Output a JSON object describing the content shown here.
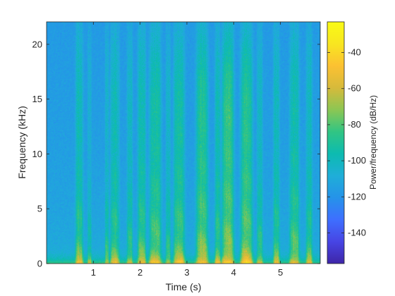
{
  "chart_data": {
    "type": "heatmap",
    "title": "",
    "xlabel": "Time (s)",
    "ylabel": "Frequency (kHz)",
    "colorbar_label": "Power/frequency (dB/Hz)",
    "xlim": [
      0,
      5.85
    ],
    "ylim": [
      0,
      22.05
    ],
    "x_ticks": [
      1,
      2,
      3,
      4,
      5
    ],
    "x_tick_labels": [
      "1",
      "2",
      "3",
      "4",
      "5"
    ],
    "y_ticks": [
      0,
      5,
      10,
      15,
      20
    ],
    "y_tick_labels": [
      "0",
      "5",
      "10",
      "15",
      "20"
    ],
    "colorbar_range": [
      -157,
      -23
    ],
    "colorbar_ticks": [
      -140,
      -120,
      -100,
      -80,
      -60,
      -40
    ],
    "colorbar_tick_labels": [
      "-140",
      "-120",
      "-100",
      "-80",
      "-60",
      "-40"
    ],
    "colormap": [
      "#3e26a8",
      "#4745e4",
      "#3e6fff",
      "#2593e9",
      "#1faed8",
      "#0cbbb0",
      "#31c583",
      "#8cc653",
      "#d6ba3b",
      "#fcc132",
      "#f8e620",
      "#f9fb15"
    ],
    "background_level_db": -115,
    "speech_bursts": [
      {
        "t_start": 0.62,
        "t_end": 0.78,
        "peak_db": -72,
        "upper_khz": 9
      },
      {
        "t_start": 0.88,
        "t_end": 0.96,
        "peak_db": -85,
        "upper_khz": 7
      },
      {
        "t_start": 1.25,
        "t_end": 1.33,
        "peak_db": -80,
        "upper_khz": 8
      },
      {
        "t_start": 1.37,
        "t_end": 1.55,
        "peak_db": -72,
        "upper_khz": 10
      },
      {
        "t_start": 1.72,
        "t_end": 1.84,
        "peak_db": -76,
        "upper_khz": 9
      },
      {
        "t_start": 1.95,
        "t_end": 2.12,
        "peak_db": -70,
        "upper_khz": 10
      },
      {
        "t_start": 2.2,
        "t_end": 2.45,
        "peak_db": -66,
        "upper_khz": 11
      },
      {
        "t_start": 2.55,
        "t_end": 2.65,
        "peak_db": -78,
        "upper_khz": 9
      },
      {
        "t_start": 2.72,
        "t_end": 2.95,
        "peak_db": -66,
        "upper_khz": 11
      },
      {
        "t_start": 3.2,
        "t_end": 3.45,
        "peak_db": -60,
        "upper_khz": 12
      },
      {
        "t_start": 3.6,
        "t_end": 3.72,
        "peak_db": -72,
        "upper_khz": 10
      },
      {
        "t_start": 3.75,
        "t_end": 4.0,
        "peak_db": -56,
        "upper_khz": 13
      },
      {
        "t_start": 4.15,
        "t_end": 4.4,
        "peak_db": -58,
        "upper_khz": 12
      },
      {
        "t_start": 4.5,
        "t_end": 4.62,
        "peak_db": -76,
        "upper_khz": 9
      },
      {
        "t_start": 4.85,
        "t_end": 4.98,
        "peak_db": -74,
        "upper_khz": 9
      },
      {
        "t_start": 5.2,
        "t_end": 5.4,
        "peak_db": -68,
        "upper_khz": 10
      },
      {
        "t_start": 5.55,
        "t_end": 5.68,
        "peak_db": -76,
        "upper_khz": 9
      }
    ]
  }
}
